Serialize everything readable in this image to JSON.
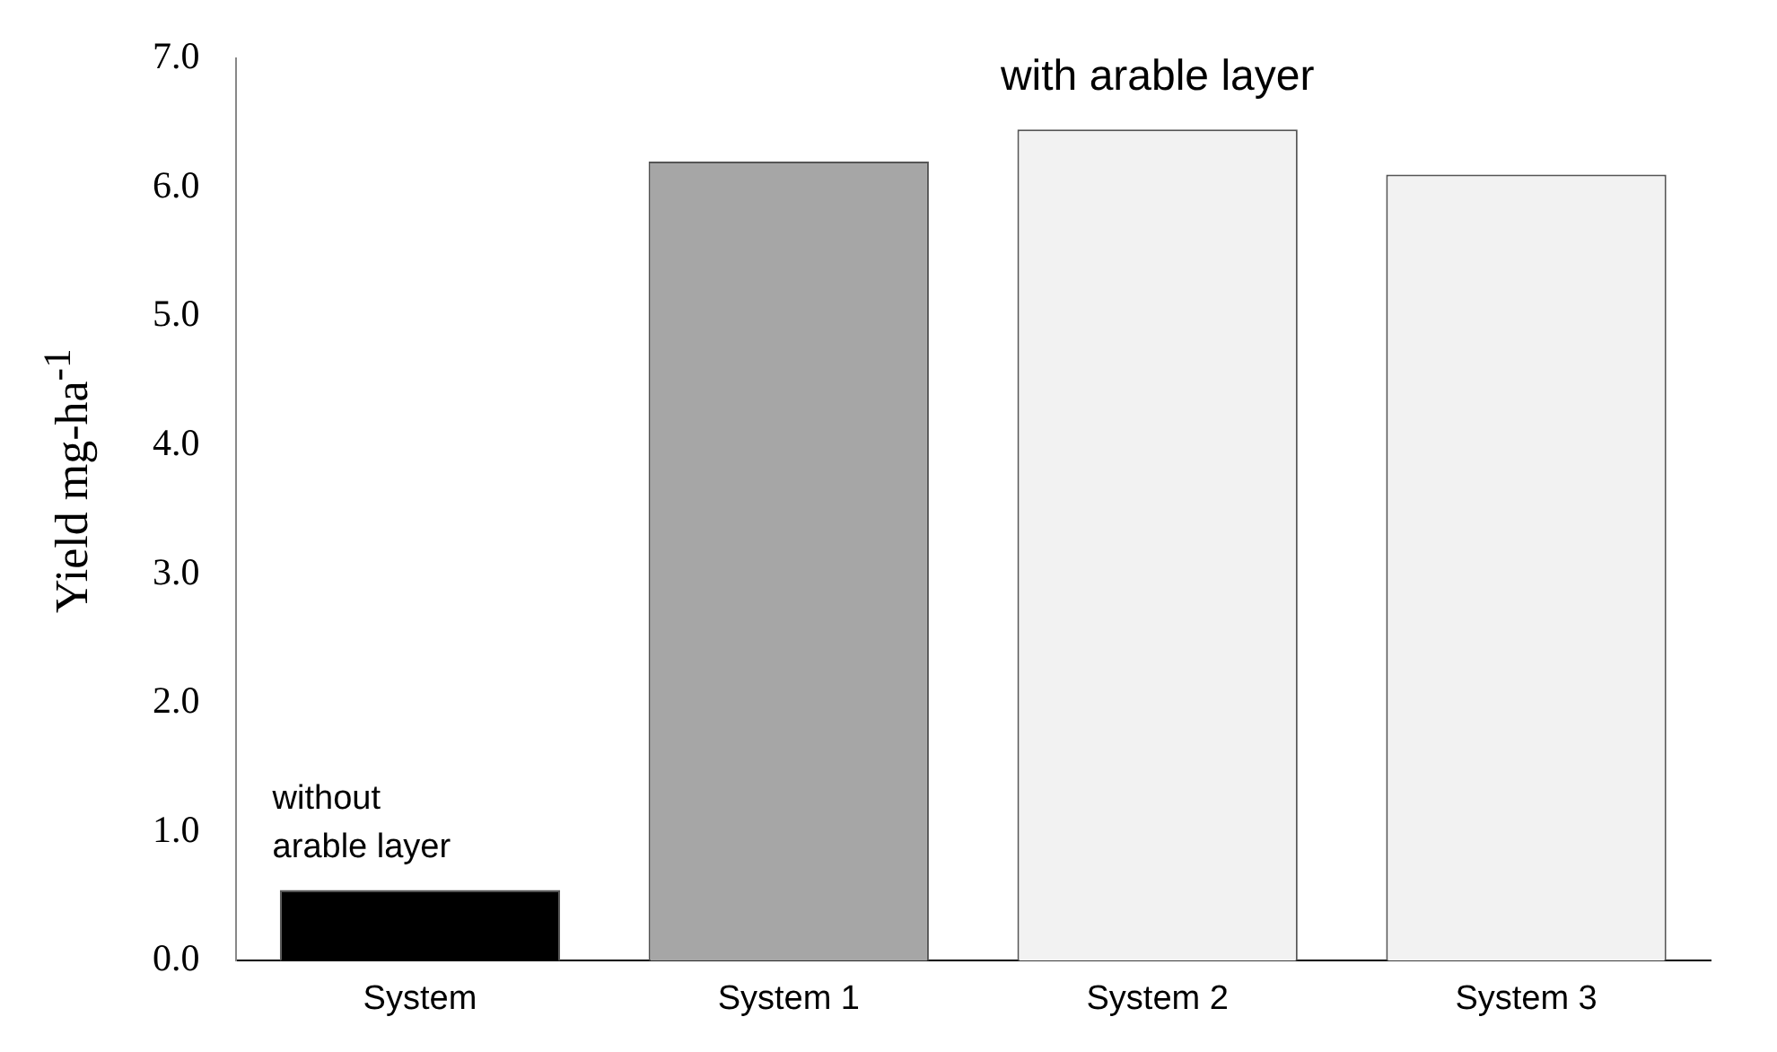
{
  "chart_data": {
    "type": "bar",
    "ylabel": "Yield mg-ha$^{-1}$",
    "categories": [
      "System",
      "System 1",
      "System 2",
      "System 3"
    ],
    "values": [
      0.55,
      6.2,
      6.45,
      6.1
    ],
    "colors": [
      "#000000",
      "#a6a6a6",
      "#f2f2f2",
      "#f2f2f2"
    ],
    "ylim": [
      0,
      7
    ],
    "yticks": [
      {
        "value": 0,
        "label": "0.0"
      },
      {
        "value": 1,
        "label": "1.0"
      },
      {
        "value": 2,
        "label": "2.0"
      },
      {
        "value": 3,
        "label": "3.0"
      },
      {
        "value": 4,
        "label": "4.0"
      },
      {
        "value": 5,
        "label": "5.0"
      },
      {
        "value": 6,
        "label": "6.0"
      },
      {
        "value": 7,
        "label": "7.0"
      }
    ],
    "annotations": [
      {
        "text": "without arable layer",
        "x": "System",
        "y": 0.55
      },
      {
        "text": "with arable layer",
        "x": "System 2",
        "y": 6.45
      }
    ],
    "grid": false,
    "legend": false
  }
}
